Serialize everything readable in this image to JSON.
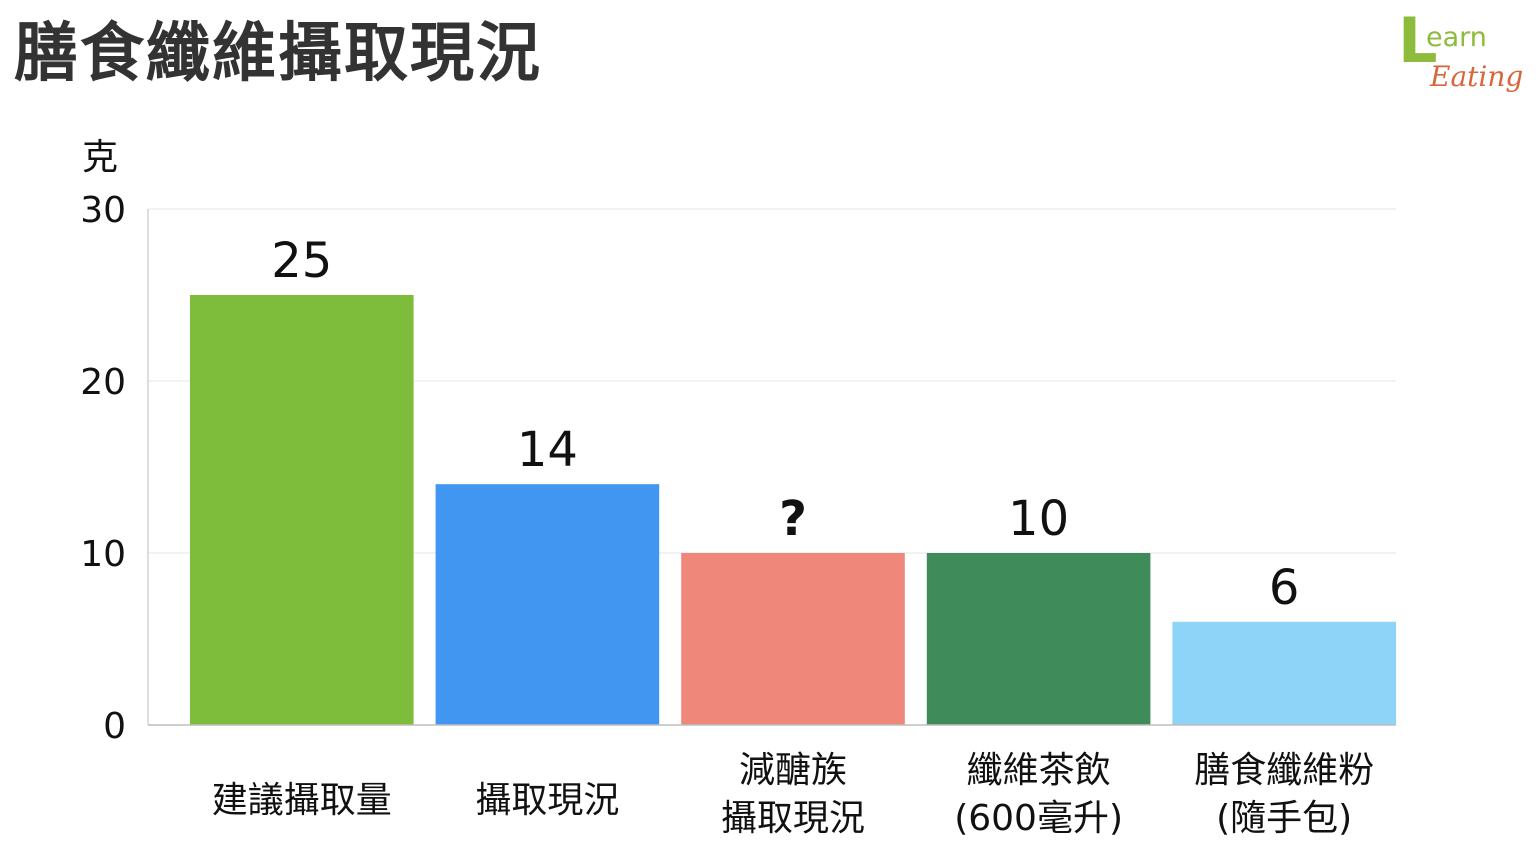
{
  "title": "膳食纖維攝取現況",
  "logo": {
    "letter": "L",
    "line1": "earn",
    "line2": "Eating",
    "colors": {
      "letter": "#8dbb3c",
      "line1": "#8dbb3c",
      "line2": "#d9663a"
    }
  },
  "chart_data": {
    "type": "bar",
    "ylabel": "克",
    "ylim": [
      0,
      30
    ],
    "yticks": [
      0,
      10,
      20,
      30
    ],
    "grid": true,
    "categories": [
      [
        "建議攝取量"
      ],
      [
        "攝取現況"
      ],
      [
        "減醣族",
        "攝取現況"
      ],
      [
        "纖維茶飲",
        "(600毫升)"
      ],
      [
        "膳食纖維粉",
        "(隨手包)"
      ]
    ],
    "values": [
      25,
      14,
      10,
      10,
      6
    ],
    "value_labels": [
      "25",
      "14",
      "?",
      "10",
      "6"
    ],
    "colors": [
      "#7dbd3b",
      "#4196f2",
      "#ef887a",
      "#3f8c5a",
      "#8ed3f8"
    ]
  }
}
